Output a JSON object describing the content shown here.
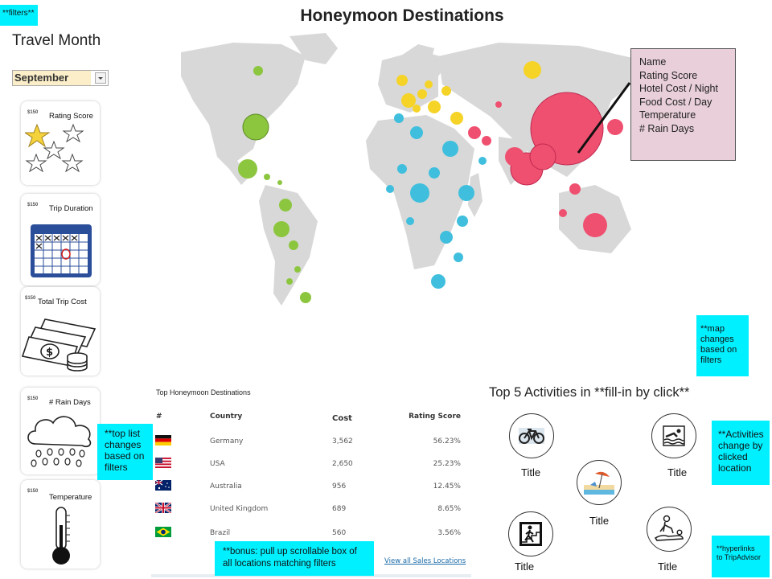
{
  "page": {
    "title": "Honeymoon Destinations"
  },
  "filters": {
    "note": "**filters**",
    "travel_month_label": "Travel Month",
    "travel_month_value": "September",
    "price_tag": "$150",
    "cards": [
      {
        "label": "Rating Score",
        "icon": "stars-icon"
      },
      {
        "label": "Trip Duration",
        "icon": "calendar-icon"
      },
      {
        "label": "Total Trip Cost",
        "icon": "money-icon"
      },
      {
        "label": "# Rain Days",
        "icon": "rain-cloud-icon"
      },
      {
        "label": "Temperature",
        "icon": "thermometer-icon"
      }
    ]
  },
  "map": {
    "tooltip_lines": [
      "Name",
      "Rating Score",
      "Hotel Cost / Night",
      "Food Cost / Day",
      "Temperature",
      "# Rain Days"
    ],
    "note_lines": [
      "**map",
      "changes",
      "based on",
      "filters"
    ],
    "colors": {
      "americas": "#8cc63f",
      "europe": "#f5d327",
      "africa": "#3fbfdd",
      "asia": "#ef5070",
      "land": "#d8d8d8"
    }
  },
  "top_list": {
    "title": "Top Honeymoon Destinations",
    "headers": {
      "rank": "#",
      "country": "Country",
      "cost": "Cost",
      "rating": "Rating Score"
    },
    "rows": [
      {
        "country": "Germany",
        "cost": "3,562",
        "rating": "56.23%",
        "flag": "germany-flag-icon"
      },
      {
        "country": "USA",
        "cost": "2,650",
        "rating": "25.23%",
        "flag": "usa-flag-icon"
      },
      {
        "country": "Australia",
        "cost": "956",
        "rating": "12.45%",
        "flag": "australia-flag-icon"
      },
      {
        "country": "United Kingdom",
        "cost": "689",
        "rating": "8.65%",
        "flag": "uk-flag-icon"
      },
      {
        "country": "Brazil",
        "cost": "560",
        "rating": "3.56%",
        "flag": "brazil-flag-icon"
      }
    ],
    "view_all": "View all Sales Locations",
    "note_lines": [
      "**top list",
      "changes",
      "based on",
      "filters"
    ],
    "bonus_lines": [
      "**bonus: pull up scrollable box of",
      "all locations matching filters"
    ]
  },
  "activities": {
    "title": "Top 5 Activities in **fill-in by click**",
    "items": [
      {
        "title": "Title",
        "icon": "bicycle-icon"
      },
      {
        "title": "Title",
        "icon": "swimming-icon"
      },
      {
        "title": "Title",
        "icon": "beach-icon"
      },
      {
        "title": "Title",
        "icon": "hiking-icon"
      },
      {
        "title": "Title",
        "icon": "massage-icon"
      }
    ],
    "note_lines": [
      "**Activities",
      "change by",
      "clicked",
      "location"
    ],
    "hyperlink_lines": [
      "**hyperlinks",
      "to TripAdvisor"
    ]
  }
}
